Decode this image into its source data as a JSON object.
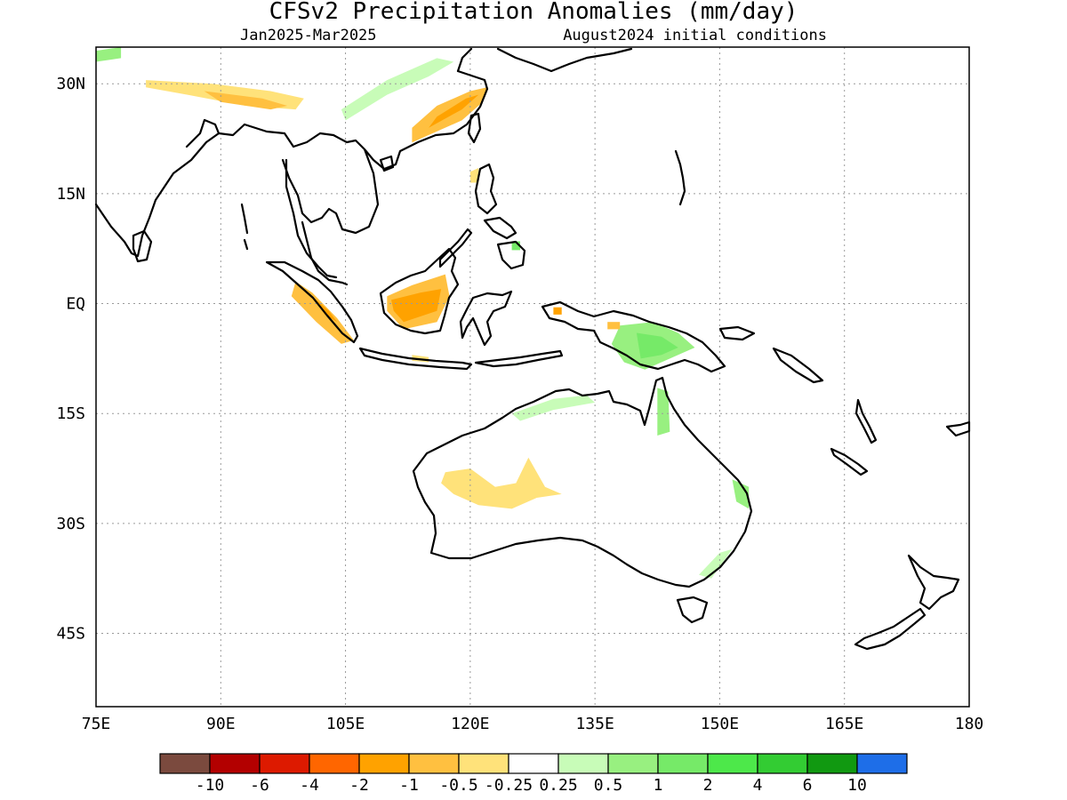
{
  "title": "CFSv2 Precipitation Anomalies (mm/day)",
  "subtitle_left": "Jan2025-Mar2025",
  "subtitle_right": "August2024 initial conditions",
  "map": {
    "lon_range": [
      75,
      180
    ],
    "lat_range": [
      -55,
      35
    ],
    "lon_ticks": [
      {
        "value": 75,
        "label": "75E"
      },
      {
        "value": 90,
        "label": "90E"
      },
      {
        "value": 105,
        "label": "105E"
      },
      {
        "value": 120,
        "label": "120E"
      },
      {
        "value": 135,
        "label": "135E"
      },
      {
        "value": 150,
        "label": "150E"
      },
      {
        "value": 165,
        "label": "165E"
      },
      {
        "value": 180,
        "label": "180"
      }
    ],
    "lat_ticks": [
      {
        "value": 30,
        "label": "30N"
      },
      {
        "value": 15,
        "label": "15N"
      },
      {
        "value": 0,
        "label": "EQ"
      },
      {
        "value": -15,
        "label": "15S"
      },
      {
        "value": -30,
        "label": "30S"
      },
      {
        "value": -45,
        "label": "45S"
      }
    ],
    "gridlines": true
  },
  "colorbar": {
    "colors": [
      "#7b4a3e",
      "#b30000",
      "#dd1a00",
      "#ff6600",
      "#ffa200",
      "#ffc040",
      "#ffe27a",
      "#ffffff",
      "#c8fcb8",
      "#98f080",
      "#76ea68",
      "#4de84a",
      "#33cc33",
      "#119911",
      "#1e6ee8"
    ],
    "labels": [
      "-10",
      "-6",
      "-4",
      "-2",
      "-1",
      "-0.5",
      "-0.25",
      "0.25",
      "0.5",
      "1",
      "2",
      "4",
      "6",
      "10"
    ]
  },
  "anomalies": [
    {
      "name": "south-china-dry",
      "color": "#ffc040",
      "lonlat": [
        [
          113,
          22
        ],
        [
          119,
          25
        ],
        [
          121.5,
          27.5
        ],
        [
          122,
          29.5
        ],
        [
          120,
          29
        ],
        [
          116,
          27
        ],
        [
          113,
          24
        ]
      ]
    },
    {
      "name": "south-china-dry-inner",
      "color": "#ffa200",
      "lonlat": [
        [
          115,
          24
        ],
        [
          119,
          26.5
        ],
        [
          121,
          28.5
        ],
        [
          119.5,
          28
        ],
        [
          116,
          25.5
        ]
      ]
    },
    {
      "name": "china-wet-band",
      "color": "#c8fcb8",
      "lonlat": [
        [
          105,
          25
        ],
        [
          110,
          28.5
        ],
        [
          115,
          31
        ],
        [
          118,
          33
        ],
        [
          116,
          33.5
        ],
        [
          110,
          30.5
        ],
        [
          104.5,
          26.5
        ]
      ]
    },
    {
      "name": "tibet-dry",
      "color": "#ffe27a",
      "lonlat": [
        [
          81,
          30.5
        ],
        [
          89,
          30
        ],
        [
          96,
          29
        ],
        [
          100,
          28
        ],
        [
          99,
          26.5
        ],
        [
          93,
          27
        ],
        [
          86,
          28.5
        ],
        [
          81,
          29.5
        ]
      ]
    },
    {
      "name": "tibet-dry-inner",
      "color": "#ffc040",
      "lonlat": [
        [
          88,
          29
        ],
        [
          95,
          28
        ],
        [
          98,
          27
        ],
        [
          96,
          26.5
        ],
        [
          90,
          27.5
        ]
      ]
    },
    {
      "name": "himalaya-wet",
      "color": "#98f080",
      "lonlat": [
        [
          75,
          34.5
        ],
        [
          78,
          35
        ],
        [
          78,
          33.5
        ],
        [
          75,
          33
        ]
      ]
    },
    {
      "name": "sumatra-dry",
      "color": "#ffc040",
      "lonlat": [
        [
          99,
          3
        ],
        [
          101,
          1.5
        ],
        [
          104,
          -2
        ],
        [
          106,
          -5
        ],
        [
          104.5,
          -5.5
        ],
        [
          101.5,
          -2.5
        ],
        [
          98.5,
          1
        ]
      ]
    },
    {
      "name": "sumatra-dry-inner",
      "color": "#ffa200",
      "lonlat": [
        [
          101,
          1
        ],
        [
          103,
          -1
        ],
        [
          104,
          -2.5
        ],
        [
          102.5,
          -1.5
        ]
      ]
    },
    {
      "name": "borneo-dry",
      "color": "#ffc040",
      "lonlat": [
        [
          110,
          1
        ],
        [
          113,
          2.5
        ],
        [
          117,
          4
        ],
        [
          117.5,
          1
        ],
        [
          116,
          -2.5
        ],
        [
          112,
          -3.5
        ],
        [
          110,
          -1
        ]
      ]
    },
    {
      "name": "borneo-dry-inner",
      "color": "#ffa200",
      "lonlat": [
        [
          110.5,
          0.5
        ],
        [
          114,
          1.5
        ],
        [
          116.5,
          2
        ],
        [
          116,
          -1
        ],
        [
          112,
          -2.5
        ],
        [
          110.8,
          -1
        ]
      ]
    },
    {
      "name": "philippines-dry",
      "color": "#ffe27a",
      "lonlat": [
        [
          120,
          18
        ],
        [
          121,
          18.5
        ],
        [
          121,
          16.5
        ],
        [
          120,
          16.5
        ]
      ]
    },
    {
      "name": "mindanao-wet",
      "color": "#76ea68",
      "lonlat": [
        [
          125,
          8.5
        ],
        [
          126,
          8.5
        ],
        [
          126,
          7.3
        ],
        [
          125,
          7.3
        ]
      ]
    },
    {
      "name": "java-dry",
      "color": "#ffe27a",
      "lonlat": [
        [
          113,
          -7
        ],
        [
          115,
          -7.3
        ],
        [
          115,
          -8
        ],
        [
          113,
          -7.8
        ]
      ]
    },
    {
      "name": "new-guinea-wet",
      "color": "#98f080",
      "lonlat": [
        [
          138,
          -3
        ],
        [
          142,
          -2.5
        ],
        [
          145,
          -4
        ],
        [
          147,
          -6
        ],
        [
          145,
          -7
        ],
        [
          141,
          -9
        ],
        [
          138.5,
          -8
        ],
        [
          137,
          -5.5
        ]
      ]
    },
    {
      "name": "new-guinea-wet-inner",
      "color": "#76ea68",
      "lonlat": [
        [
          140,
          -4
        ],
        [
          143,
          -4.5
        ],
        [
          145,
          -6
        ],
        [
          143,
          -7
        ],
        [
          140.5,
          -7.5
        ]
      ]
    },
    {
      "name": "new-guinea-dry",
      "color": "#ffc040",
      "lonlat": [
        [
          136.5,
          -2.5
        ],
        [
          138,
          -2.5
        ],
        [
          138,
          -3.5
        ],
        [
          136.5,
          -3.5
        ]
      ]
    },
    {
      "name": "halmahera-dry",
      "color": "#ffa200",
      "lonlat": [
        [
          130,
          -0.5
        ],
        [
          131,
          -0.5
        ],
        [
          131,
          -1.5
        ],
        [
          130,
          -1.5
        ]
      ]
    },
    {
      "name": "north-australia-wet",
      "color": "#c8fcb8",
      "lonlat": [
        [
          125,
          -15
        ],
        [
          130,
          -13
        ],
        [
          134,
          -12.5
        ],
        [
          135,
          -13.5
        ],
        [
          130,
          -14.5
        ],
        [
          126,
          -16
        ]
      ]
    },
    {
      "name": "cape-york-wet",
      "color": "#98f080",
      "lonlat": [
        [
          142.5,
          -11.5
        ],
        [
          143.8,
          -12
        ],
        [
          144,
          -17.5
        ],
        [
          142.5,
          -18
        ]
      ]
    },
    {
      "name": "east-australia-wet",
      "color": "#98f080",
      "lonlat": [
        [
          151.5,
          -24
        ],
        [
          153.5,
          -25
        ],
        [
          153.5,
          -28
        ],
        [
          152,
          -27
        ]
      ]
    },
    {
      "name": "nsw-wet",
      "color": "#c8fcb8",
      "lonlat": [
        [
          150,
          -34
        ],
        [
          151.5,
          -33.5
        ],
        [
          149,
          -37.5
        ],
        [
          147.5,
          -37
        ]
      ]
    },
    {
      "name": "west-australia-dry",
      "color": "#ffe27a",
      "lonlat": [
        [
          117,
          -23
        ],
        [
          120,
          -22.5
        ],
        [
          123,
          -25
        ],
        [
          125.5,
          -24.5
        ],
        [
          127,
          -21
        ],
        [
          129,
          -25
        ],
        [
          131,
          -26
        ],
        [
          128,
          -26.5
        ],
        [
          125,
          -28
        ],
        [
          121,
          -27.5
        ],
        [
          118,
          -26
        ],
        [
          116.5,
          -24.5
        ]
      ]
    }
  ]
}
